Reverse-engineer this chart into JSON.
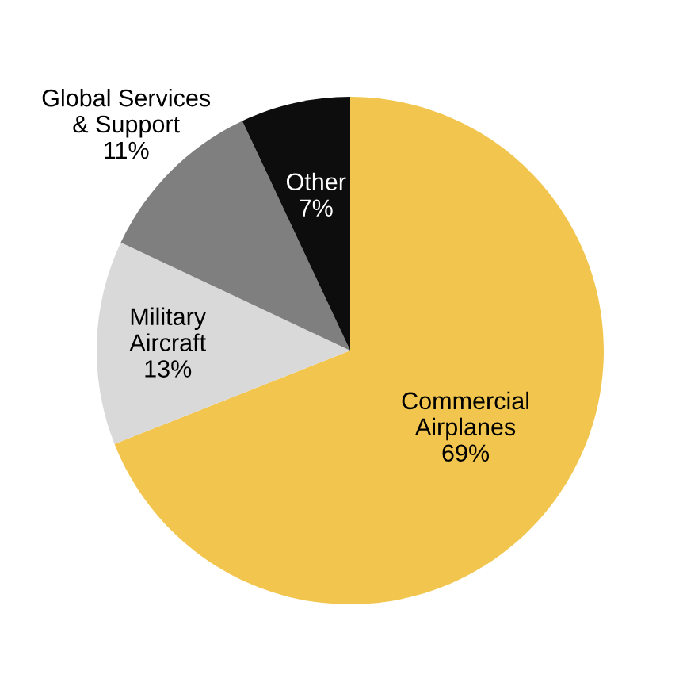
{
  "chart_data": {
    "type": "pie",
    "categories": [
      "Commercial\nAirplanes",
      "Military\nAircraft",
      "Global Services\n& Support",
      "Other"
    ],
    "values": [
      69,
      13,
      11,
      7
    ],
    "colors": [
      "#f2c64e",
      "#d9d9d9",
      "#7f7f7f",
      "#0d0d0d"
    ],
    "value_labels": [
      "69%",
      "13%",
      "11%",
      "7%"
    ]
  }
}
